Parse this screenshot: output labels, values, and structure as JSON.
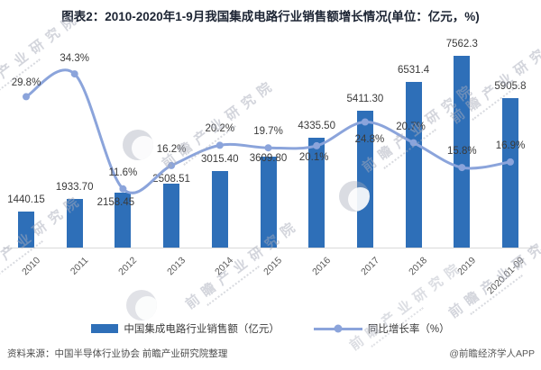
{
  "title": "图表2：2010-2020年1-9月我国集成电路行业销售额增长情况(单位：亿元，%)",
  "watermark": {
    "text": "前瞻产业研究院"
  },
  "chart_data": {
    "type": "combo-bar-line",
    "categories": [
      "2010",
      "2011",
      "2012",
      "2013",
      "2014",
      "2015",
      "2016",
      "2017",
      "2018",
      "2019",
      "2020.01-09"
    ],
    "series": [
      {
        "name": "中国集成电路行业销售额（亿元）",
        "type": "bar",
        "color": "#2E6FB8",
        "values": [
          1440.15,
          1933.7,
          2158.45,
          2508.51,
          3015.4,
          3609.8,
          4335.5,
          5411.3,
          6531.4,
          7562.3,
          5905.8
        ],
        "labels": [
          "1440.15",
          "1933.70",
          "2158.45",
          "2508.51",
          "3015.40",
          "3609.80",
          "4335.50",
          "5411.30",
          "6531.4",
          "7562.3",
          "5905.8"
        ]
      },
      {
        "name": "同比增长率（%）",
        "type": "line",
        "color": "#8BA4DB",
        "values": [
          29.8,
          34.3,
          11.6,
          16.2,
          20.2,
          19.7,
          20.1,
          24.8,
          20.7,
          15.8,
          16.9
        ],
        "labels": [
          "29.8%",
          "34.3%",
          "11.6%",
          "16.2%",
          "20.2%",
          "19.7%",
          "20.1%",
          "24.8%",
          "20.7%",
          "15.8%",
          "16.9%"
        ]
      }
    ],
    "axes": {
      "left": {
        "min": 0,
        "max": 8000,
        "hidden": true
      },
      "right": {
        "min": 0,
        "max": 40,
        "hidden": true
      },
      "gridlines": false
    },
    "legend_position": "bottom",
    "data_labels": true
  },
  "footer": {
    "source": "资料来源：中国半导体行业协会 前瞻产业研究院整理",
    "credit": "@前瞻经济学人APP"
  }
}
